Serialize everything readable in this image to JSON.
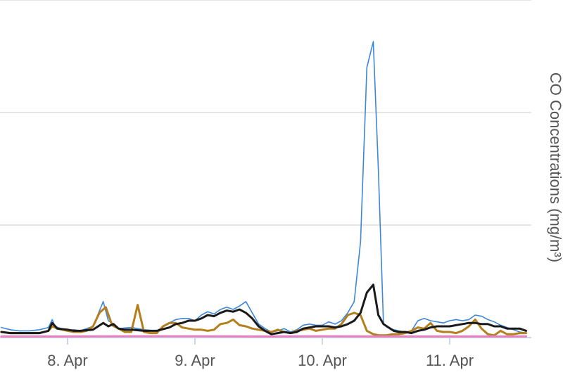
{
  "chart_data": {
    "type": "line",
    "ylabel": "CO Concentrations (mg/m³)",
    "x_ticks": [
      "8. Apr",
      "9. Apr",
      "10. Apr",
      "11. Apr"
    ],
    "x_tick_days": [
      8,
      9,
      10,
      11
    ],
    "xlim_days": [
      7.48,
      11.66
    ],
    "ylim": [
      0,
      3
    ],
    "y_gridlines": [
      1,
      2,
      3
    ],
    "grid": true,
    "series": [
      {
        "color": "#3d86d9",
        "stroke": 1.6,
        "x_days": [
          7.48,
          7.55,
          7.62,
          7.7,
          7.78,
          7.85,
          7.88,
          7.9,
          7.95,
          8.0,
          8.05,
          8.1,
          8.2,
          8.28,
          8.32,
          8.36,
          8.4,
          8.5,
          8.6,
          8.7,
          8.78,
          8.85,
          8.9,
          8.95,
          9.0,
          9.05,
          9.1,
          9.15,
          9.2,
          9.25,
          9.3,
          9.35,
          9.4,
          9.45,
          9.5,
          9.55,
          9.6,
          9.65,
          9.7,
          9.75,
          9.8,
          9.85,
          9.9,
          9.95,
          10.0,
          10.05,
          10.1,
          10.15,
          10.2,
          10.25,
          10.3,
          10.35,
          10.4,
          10.44,
          10.48,
          10.52,
          10.56,
          10.6,
          10.65,
          10.7,
          10.75,
          10.8,
          10.85,
          10.9,
          10.95,
          11.0,
          11.05,
          11.1,
          11.15,
          11.2,
          11.25,
          11.3,
          11.35,
          11.4,
          11.45,
          11.5,
          11.55,
          11.6
        ],
        "values": [
          0.09,
          0.07,
          0.06,
          0.06,
          0.07,
          0.09,
          0.16,
          0.1,
          0.08,
          0.06,
          0.07,
          0.06,
          0.1,
          0.32,
          0.15,
          0.12,
          0.08,
          0.09,
          0.07,
          0.06,
          0.12,
          0.16,
          0.17,
          0.17,
          0.15,
          0.2,
          0.23,
          0.21,
          0.25,
          0.27,
          0.25,
          0.28,
          0.32,
          0.22,
          0.12,
          0.08,
          0.05,
          0.06,
          0.08,
          0.05,
          0.07,
          0.11,
          0.12,
          0.11,
          0.11,
          0.14,
          0.12,
          0.15,
          0.22,
          0.32,
          0.85,
          2.4,
          2.63,
          1.5,
          0.12,
          0.09,
          0.07,
          0.06,
          0.05,
          0.06,
          0.15,
          0.17,
          0.15,
          0.14,
          0.13,
          0.15,
          0.16,
          0.15,
          0.16,
          0.2,
          0.19,
          0.16,
          0.14,
          0.11,
          0.09,
          0.07,
          0.05,
          0.04
        ]
      },
      {
        "color": "#b37f1c",
        "stroke": 3,
        "x_days": [
          7.48,
          7.55,
          7.62,
          7.7,
          7.78,
          7.85,
          7.88,
          7.92,
          8.0,
          8.05,
          8.1,
          8.15,
          8.2,
          8.25,
          8.3,
          8.35,
          8.4,
          8.45,
          8.5,
          8.55,
          8.6,
          8.65,
          8.7,
          8.75,
          8.8,
          8.85,
          8.9,
          8.95,
          9.0,
          9.05,
          9.1,
          9.15,
          9.2,
          9.25,
          9.3,
          9.35,
          9.4,
          9.45,
          9.5,
          9.55,
          9.6,
          9.65,
          9.7,
          9.75,
          9.8,
          9.85,
          9.9,
          9.95,
          10.0,
          10.05,
          10.1,
          10.15,
          10.2,
          10.25,
          10.3,
          10.35,
          10.4,
          10.45,
          10.5,
          10.55,
          10.6,
          10.65,
          10.7,
          10.75,
          10.8,
          10.85,
          10.9,
          10.95,
          11.0,
          11.05,
          11.1,
          11.15,
          11.2,
          11.25,
          11.3,
          11.35,
          11.4,
          11.45,
          11.5,
          11.55,
          11.6
        ],
        "values": [
          0.05,
          0.04,
          0.04,
          0.04,
          0.04,
          0.06,
          0.1,
          0.08,
          0.06,
          0.05,
          0.05,
          0.06,
          0.1,
          0.22,
          0.27,
          0.11,
          0.08,
          0.05,
          0.05,
          0.29,
          0.05,
          0.04,
          0.04,
          0.1,
          0.13,
          0.13,
          0.09,
          0.08,
          0.07,
          0.07,
          0.06,
          0.07,
          0.12,
          0.13,
          0.16,
          0.11,
          0.1,
          0.08,
          0.07,
          0.06,
          0.05,
          0.07,
          0.05,
          0.04,
          0.06,
          0.07,
          0.08,
          0.06,
          0.07,
          0.08,
          0.08,
          0.12,
          0.2,
          0.22,
          0.2,
          0.06,
          0.03,
          0.02,
          0.02,
          0.03,
          0.03,
          0.04,
          0.06,
          0.09,
          0.08,
          0.13,
          0.06,
          0.05,
          0.05,
          0.04,
          0.06,
          0.1,
          0.16,
          0.08,
          0.03,
          0.02,
          0.06,
          0.03,
          0.03,
          0.04,
          0.04
        ]
      },
      {
        "color": "#1a1a1a",
        "stroke": 3,
        "x_days": [
          7.48,
          7.55,
          7.62,
          7.7,
          7.78,
          7.85,
          7.88,
          7.92,
          8.0,
          8.05,
          8.1,
          8.2,
          8.28,
          8.32,
          8.36,
          8.4,
          8.45,
          8.5,
          8.6,
          8.7,
          8.8,
          8.85,
          8.9,
          8.95,
          9.0,
          9.05,
          9.1,
          9.15,
          9.2,
          9.25,
          9.3,
          9.35,
          9.4,
          9.45,
          9.5,
          9.55,
          9.6,
          9.65,
          9.7,
          9.75,
          9.8,
          9.85,
          9.9,
          9.95,
          10.0,
          10.05,
          10.1,
          10.15,
          10.2,
          10.25,
          10.3,
          10.35,
          10.4,
          10.44,
          10.48,
          10.52,
          10.56,
          10.6,
          10.65,
          10.7,
          10.75,
          10.8,
          10.85,
          10.9,
          10.95,
          11.0,
          11.05,
          11.1,
          11.15,
          11.2,
          11.25,
          11.3,
          11.35,
          11.4,
          11.45,
          11.5,
          11.55,
          11.6
        ],
        "values": [
          0.05,
          0.04,
          0.04,
          0.04,
          0.04,
          0.06,
          0.13,
          0.08,
          0.07,
          0.06,
          0.06,
          0.07,
          0.13,
          0.1,
          0.12,
          0.08,
          0.07,
          0.07,
          0.06,
          0.06,
          0.09,
          0.12,
          0.13,
          0.15,
          0.15,
          0.17,
          0.2,
          0.19,
          0.22,
          0.24,
          0.23,
          0.25,
          0.22,
          0.17,
          0.1,
          0.06,
          0.03,
          0.04,
          0.05,
          0.04,
          0.05,
          0.08,
          0.09,
          0.1,
          0.1,
          0.1,
          0.09,
          0.1,
          0.12,
          0.15,
          0.22,
          0.4,
          0.47,
          0.2,
          0.12,
          0.09,
          0.06,
          0.05,
          0.05,
          0.04,
          0.06,
          0.07,
          0.09,
          0.1,
          0.1,
          0.1,
          0.11,
          0.12,
          0.13,
          0.13,
          0.12,
          0.12,
          0.1,
          0.1,
          0.08,
          0.08,
          0.08,
          0.06
        ]
      },
      {
        "color": "#e87fc0",
        "stroke": 3,
        "x_days": [
          7.48,
          8.0,
          8.5,
          9.0,
          9.5,
          10.0,
          10.5,
          11.0,
          11.6
        ],
        "values": [
          0.01,
          0.01,
          0.012,
          0.012,
          0.01,
          0.012,
          0.01,
          0.01,
          0.01
        ]
      }
    ]
  }
}
